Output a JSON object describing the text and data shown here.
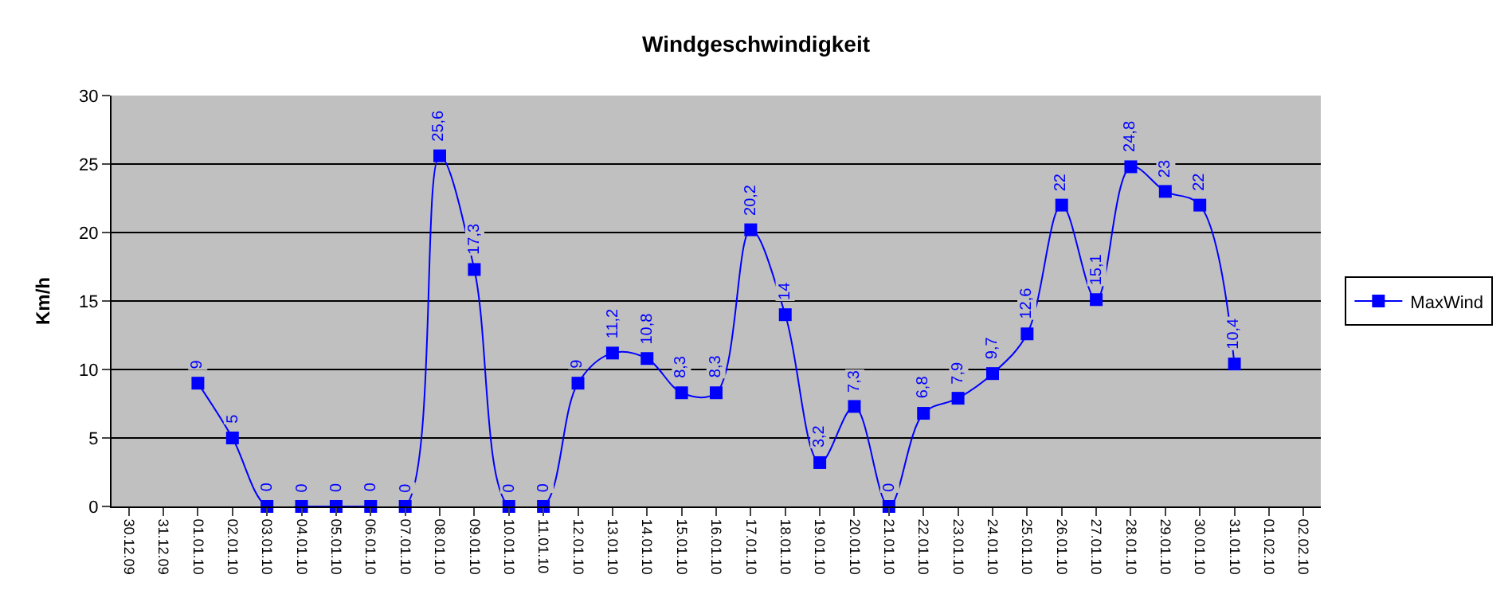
{
  "chart_data": {
    "type": "line",
    "title": "Windgeschwindigkeit",
    "ylabel": "Km/h",
    "categories": [
      "30.12.09",
      "31.12.09",
      "01.01.10",
      "02.01.10",
      "03.01.10",
      "04.01.10",
      "05.01.10",
      "06.01.10",
      "07.01.10",
      "08.01.10",
      "09.01.10",
      "10.01.10",
      "11.01.10",
      "12.01.10",
      "13.01.10",
      "14.01.10",
      "15.01.10",
      "16.01.10",
      "17.01.10",
      "18.01.10",
      "19.01.10",
      "20.01.10",
      "21.01.10",
      "22.01.10",
      "23.01.10",
      "24.01.10",
      "25.01.10",
      "26.01.10",
      "27.01.10",
      "28.01.10",
      "29.01.10",
      "30.01.10",
      "31.01.10",
      "01.02.10",
      "02.02.10"
    ],
    "series": [
      {
        "name": "MaxWind",
        "color": "#0000ff",
        "values": [
          null,
          null,
          9,
          5,
          0,
          0,
          0,
          0,
          0,
          25.6,
          17.3,
          0,
          0,
          9,
          11.2,
          10.8,
          8.3,
          8.3,
          20.2,
          14,
          3.2,
          7.3,
          0,
          6.8,
          7.9,
          9.7,
          12.6,
          22,
          15.1,
          24.8,
          23,
          22,
          10.4,
          null,
          null
        ],
        "value_labels": [
          null,
          null,
          "9",
          "5",
          "0",
          "0",
          "0",
          "0",
          "0",
          "25,6",
          "17,3",
          "0",
          "0",
          "9",
          "11,2",
          "10,8",
          "8,3",
          "8,3",
          "20,2",
          "14",
          "3,2",
          "7,3",
          "0",
          "6,8",
          "7,9",
          "9,7",
          "12,6",
          "22",
          "15,1",
          "24,8",
          "23",
          "22",
          "10,4",
          null,
          null
        ]
      }
    ],
    "ylim": [
      0,
      30
    ],
    "yticks": [
      0,
      5,
      10,
      15,
      20,
      25,
      30
    ],
    "grid": "y",
    "legend": "right",
    "marker": "square"
  }
}
